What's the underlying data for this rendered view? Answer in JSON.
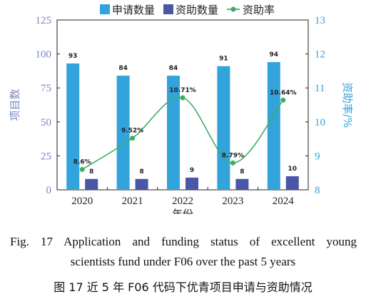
{
  "chart_data": {
    "type": "bar+line",
    "categories": [
      "2020",
      "2021",
      "2022",
      "2023",
      "2024"
    ],
    "series": [
      {
        "name": "申请数量",
        "type": "bar",
        "axis": "left",
        "values": [
          93,
          84,
          84,
          91,
          94
        ],
        "labels": [
          "93",
          "84",
          "84",
          "91",
          "94"
        ],
        "color": "#33a3dc"
      },
      {
        "name": "资助数量",
        "type": "bar",
        "axis": "left",
        "values": [
          8,
          8,
          9,
          8,
          10
        ],
        "labels": [
          "8",
          "8",
          "9",
          "8",
          "10"
        ],
        "color": "#4a56a6"
      },
      {
        "name": "资助率",
        "type": "line",
        "axis": "right",
        "values": [
          8.6,
          9.52,
          10.71,
          8.79,
          10.64
        ],
        "labels": [
          "8.6%",
          "9.52%",
          "10.71%",
          "8.79%",
          "10.64%"
        ],
        "color": "#3fae62"
      }
    ],
    "xlabel": "年份",
    "ylabel": "项目数",
    "ylabel_right": "资助率/%",
    "ylim": [
      0,
      125
    ],
    "yticks": [
      "0",
      "25",
      "50",
      "75",
      "100",
      "125"
    ],
    "ylim_right": [
      8,
      13
    ],
    "yticks_right": [
      "8",
      "9",
      "10",
      "11",
      "12",
      "13"
    ],
    "legend_position": "top",
    "grid": false,
    "left_axis_color": "#7a86c6",
    "right_axis_color": "#33a3dc"
  },
  "caption": {
    "en_line1": "Fig. 17   Application and funding status of excellent young",
    "en_line2": "scientists fund under F06 over the past 5 years",
    "zh": "图 17    近 5 年 F06 代码下优青项目申请与资助情况"
  }
}
